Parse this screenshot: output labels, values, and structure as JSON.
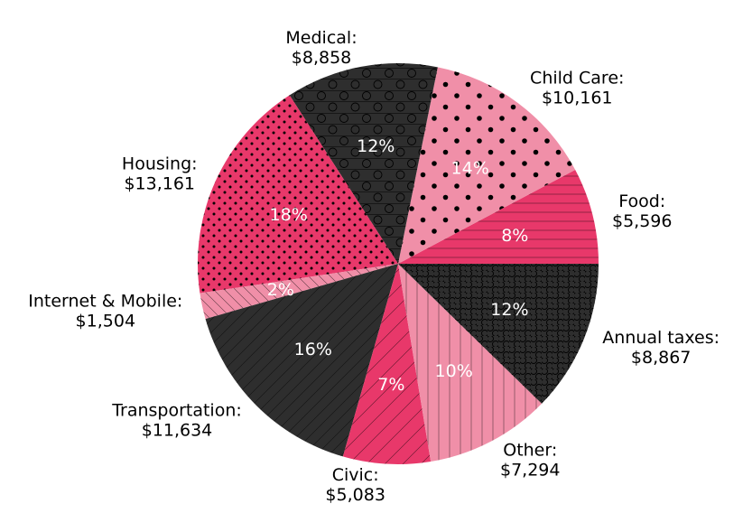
{
  "chart_data": {
    "type": "pie",
    "title": "",
    "start_angle_deg": 0,
    "direction": "counterclockwise",
    "slices": [
      {
        "label": "Food",
        "value": 5596,
        "value_text": "$5,596",
        "pct": "8%",
        "color": "#e8386a",
        "hatch": "horizontal-lines"
      },
      {
        "label": "Child Care",
        "value": 10161,
        "value_text": "$10,161",
        "pct": "14%",
        "color": "#f08fa8",
        "hatch": "large-dots"
      },
      {
        "label": "Medical",
        "value": 8858,
        "value_text": "$8,858",
        "pct": "12%",
        "color": "#2e2e2e",
        "hatch": "circles-lines"
      },
      {
        "label": "Housing",
        "value": 13161,
        "value_text": "$13,161",
        "pct": "18%",
        "color": "#e8386a",
        "hatch": "small-dots"
      },
      {
        "label": "Internet & Mobile",
        "value": 1504,
        "value_text": "$1,504",
        "pct": "2%",
        "color": "#f08fa8",
        "hatch": "backslash"
      },
      {
        "label": "Transportation",
        "value": 11634,
        "value_text": "$11,634",
        "pct": "16%",
        "color": "#2e2e2e",
        "hatch": "slash"
      },
      {
        "label": "Civic",
        "value": 5083,
        "value_text": "$5,083",
        "pct": "7%",
        "color": "#e8386a",
        "hatch": "slash-wide"
      },
      {
        "label": "Other",
        "value": 7294,
        "value_text": "$7,294",
        "pct": "10%",
        "color": "#f08fa8",
        "hatch": "vertical-lines"
      },
      {
        "label": "Annual taxes",
        "value": 8867,
        "value_text": "$8,867",
        "pct": "12%",
        "color": "#2e2e2e",
        "hatch": "small-circles"
      }
    ]
  }
}
